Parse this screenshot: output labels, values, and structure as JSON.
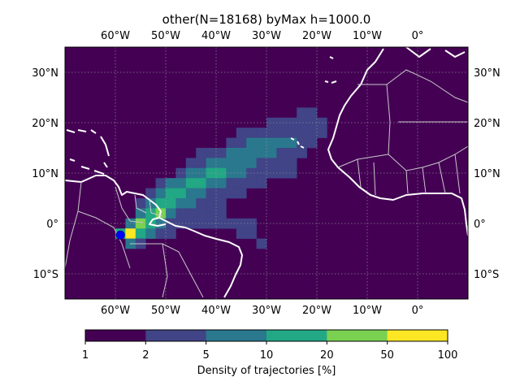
{
  "title": "other(N=18168) byMax h=1000.0",
  "map": {
    "lon_range": [
      -70,
      10
    ],
    "lat_range": [
      -15,
      35
    ],
    "lon_ticks": [
      {
        "value": -60,
        "label": "60°W"
      },
      {
        "value": -50,
        "label": "50°W"
      },
      {
        "value": -40,
        "label": "40°W"
      },
      {
        "value": -30,
        "label": "30°W"
      },
      {
        "value": -20,
        "label": "20°W"
      },
      {
        "value": -10,
        "label": "10°W"
      },
      {
        "value": 0,
        "label": "0°"
      }
    ],
    "lat_ticks": [
      {
        "value": 30,
        "label": "30°N"
      },
      {
        "value": 20,
        "label": "20°N"
      },
      {
        "value": 10,
        "label": "10°N"
      },
      {
        "value": 0,
        "label": "0°"
      },
      {
        "value": -10,
        "label": "10°S"
      }
    ],
    "background_color": "#440154",
    "gridlines": true,
    "source_marker": {
      "lon": -59.0,
      "lat": -2.3,
      "color": "#0000ff"
    }
  },
  "colorbar": {
    "label": "Density of trajectories [%]",
    "tick_labels": [
      "1",
      "2",
      "5",
      "10",
      "20",
      "50",
      "100"
    ],
    "colors": [
      "#440154",
      "#414487",
      "#2a788e",
      "#22a884",
      "#7ad151",
      "#fde725"
    ]
  },
  "chart_data": {
    "type": "heatmap",
    "title": "other(N=18168) byMax h=1000.0",
    "cell_size_deg": 2,
    "levels": [
      "1-2",
      "2-5",
      "5-10",
      "10-20",
      "20-50",
      "50-100"
    ],
    "cells": [
      {
        "lon": -24,
        "lat": 22,
        "level": 2
      },
      {
        "lon": -22,
        "lat": 22,
        "level": 2
      },
      {
        "lon": -30,
        "lat": 20,
        "level": 2
      },
      {
        "lon": -28,
        "lat": 20,
        "level": 2
      },
      {
        "lon": -26,
        "lat": 20,
        "level": 2
      },
      {
        "lon": -24,
        "lat": 20,
        "level": 2
      },
      {
        "lon": -22,
        "lat": 20,
        "level": 2
      },
      {
        "lon": -20,
        "lat": 20,
        "level": 2
      },
      {
        "lon": -36,
        "lat": 18,
        "level": 2
      },
      {
        "lon": -34,
        "lat": 18,
        "level": 2
      },
      {
        "lon": -32,
        "lat": 18,
        "level": 2
      },
      {
        "lon": -30,
        "lat": 18,
        "level": 2
      },
      {
        "lon": -28,
        "lat": 18,
        "level": 2
      },
      {
        "lon": -26,
        "lat": 18,
        "level": 2
      },
      {
        "lon": -24,
        "lat": 18,
        "level": 2
      },
      {
        "lon": -22,
        "lat": 18,
        "level": 2
      },
      {
        "lon": -20,
        "lat": 18,
        "level": 2
      },
      {
        "lon": -38,
        "lat": 16,
        "level": 2
      },
      {
        "lon": -36,
        "lat": 16,
        "level": 2
      },
      {
        "lon": -34,
        "lat": 16,
        "level": 3
      },
      {
        "lon": -32,
        "lat": 16,
        "level": 3
      },
      {
        "lon": -30,
        "lat": 16,
        "level": 3
      },
      {
        "lon": -28,
        "lat": 16,
        "level": 3
      },
      {
        "lon": -26,
        "lat": 16,
        "level": 3
      },
      {
        "lon": -24,
        "lat": 16,
        "level": 2
      },
      {
        "lon": -22,
        "lat": 16,
        "level": 2
      },
      {
        "lon": -44,
        "lat": 14,
        "level": 2
      },
      {
        "lon": -42,
        "lat": 14,
        "level": 2
      },
      {
        "lon": -40,
        "lat": 14,
        "level": 2
      },
      {
        "lon": -38,
        "lat": 14,
        "level": 3
      },
      {
        "lon": -36,
        "lat": 14,
        "level": 3
      },
      {
        "lon": -34,
        "lat": 14,
        "level": 3
      },
      {
        "lon": -32,
        "lat": 14,
        "level": 3
      },
      {
        "lon": -30,
        "lat": 14,
        "level": 3
      },
      {
        "lon": -28,
        "lat": 14,
        "level": 2
      },
      {
        "lon": -26,
        "lat": 14,
        "level": 2
      },
      {
        "lon": -24,
        "lat": 14,
        "level": 2
      },
      {
        "lon": -46,
        "lat": 12,
        "level": 2
      },
      {
        "lon": -44,
        "lat": 12,
        "level": 2
      },
      {
        "lon": -42,
        "lat": 12,
        "level": 3
      },
      {
        "lon": -40,
        "lat": 12,
        "level": 3
      },
      {
        "lon": -38,
        "lat": 12,
        "level": 3
      },
      {
        "lon": -36,
        "lat": 12,
        "level": 3
      },
      {
        "lon": -34,
        "lat": 12,
        "level": 3
      },
      {
        "lon": -32,
        "lat": 12,
        "level": 2
      },
      {
        "lon": -30,
        "lat": 12,
        "level": 2
      },
      {
        "lon": -28,
        "lat": 12,
        "level": 2
      },
      {
        "lon": -26,
        "lat": 12,
        "level": 2
      },
      {
        "lon": -48,
        "lat": 10,
        "level": 2
      },
      {
        "lon": -46,
        "lat": 10,
        "level": 3
      },
      {
        "lon": -44,
        "lat": 10,
        "level": 3
      },
      {
        "lon": -42,
        "lat": 10,
        "level": 4
      },
      {
        "lon": -40,
        "lat": 10,
        "level": 4
      },
      {
        "lon": -38,
        "lat": 10,
        "level": 3
      },
      {
        "lon": -36,
        "lat": 10,
        "level": 3
      },
      {
        "lon": -34,
        "lat": 10,
        "level": 2
      },
      {
        "lon": -32,
        "lat": 10,
        "level": 2
      },
      {
        "lon": -30,
        "lat": 10,
        "level": 2
      },
      {
        "lon": -28,
        "lat": 10,
        "level": 2
      },
      {
        "lon": -26,
        "lat": 10,
        "level": 2
      },
      {
        "lon": -52,
        "lat": 8,
        "level": 2
      },
      {
        "lon": -50,
        "lat": 8,
        "level": 3
      },
      {
        "lon": -48,
        "lat": 8,
        "level": 3
      },
      {
        "lon": -46,
        "lat": 8,
        "level": 4
      },
      {
        "lon": -44,
        "lat": 8,
        "level": 4
      },
      {
        "lon": -42,
        "lat": 8,
        "level": 3
      },
      {
        "lon": -40,
        "lat": 8,
        "level": 3
      },
      {
        "lon": -38,
        "lat": 8,
        "level": 2
      },
      {
        "lon": -36,
        "lat": 8,
        "level": 2
      },
      {
        "lon": -34,
        "lat": 8,
        "level": 2
      },
      {
        "lon": -32,
        "lat": 8,
        "level": 2
      },
      {
        "lon": -54,
        "lat": 6,
        "level": 2
      },
      {
        "lon": -52,
        "lat": 6,
        "level": 3
      },
      {
        "lon": -50,
        "lat": 6,
        "level": 4
      },
      {
        "lon": -48,
        "lat": 6,
        "level": 4
      },
      {
        "lon": -46,
        "lat": 6,
        "level": 3
      },
      {
        "lon": -44,
        "lat": 6,
        "level": 3
      },
      {
        "lon": -42,
        "lat": 6,
        "level": 2
      },
      {
        "lon": -40,
        "lat": 6,
        "level": 2
      },
      {
        "lon": -38,
        "lat": 6,
        "level": 2
      },
      {
        "lon": -36,
        "lat": 6,
        "level": 2
      },
      {
        "lon": -56,
        "lat": 4,
        "level": 2
      },
      {
        "lon": -54,
        "lat": 4,
        "level": 3
      },
      {
        "lon": -52,
        "lat": 4,
        "level": 4
      },
      {
        "lon": -50,
        "lat": 4,
        "level": 4
      },
      {
        "lon": -48,
        "lat": 4,
        "level": 3
      },
      {
        "lon": -46,
        "lat": 4,
        "level": 3
      },
      {
        "lon": -44,
        "lat": 4,
        "level": 2
      },
      {
        "lon": -42,
        "lat": 4,
        "level": 2
      },
      {
        "lon": -40,
        "lat": 4,
        "level": 2
      },
      {
        "lon": -56,
        "lat": 2,
        "level": 3
      },
      {
        "lon": -54,
        "lat": 2,
        "level": 4
      },
      {
        "lon": -52,
        "lat": 2,
        "level": 5
      },
      {
        "lon": -50,
        "lat": 2,
        "level": 3
      },
      {
        "lon": -48,
        "lat": 2,
        "level": 2
      },
      {
        "lon": -46,
        "lat": 2,
        "level": 2
      },
      {
        "lon": -44,
        "lat": 2,
        "level": 2
      },
      {
        "lon": -42,
        "lat": 2,
        "level": 2
      },
      {
        "lon": -40,
        "lat": 2,
        "level": 2
      },
      {
        "lon": -58,
        "lat": 0,
        "level": 3
      },
      {
        "lon": -56,
        "lat": 0,
        "level": 5
      },
      {
        "lon": -54,
        "lat": 0,
        "level": 4
      },
      {
        "lon": -52,
        "lat": 0,
        "level": 3
      },
      {
        "lon": -50,
        "lat": 0,
        "level": 2
      },
      {
        "lon": -48,
        "lat": 0,
        "level": 2
      },
      {
        "lon": -46,
        "lat": 0,
        "level": 2
      },
      {
        "lon": -44,
        "lat": 0,
        "level": 2
      },
      {
        "lon": -42,
        "lat": 0,
        "level": 2
      },
      {
        "lon": -40,
        "lat": 0,
        "level": 2
      },
      {
        "lon": -38,
        "lat": 0,
        "level": 2
      },
      {
        "lon": -36,
        "lat": 0,
        "level": 2
      },
      {
        "lon": -34,
        "lat": 0,
        "level": 2
      },
      {
        "lon": -60,
        "lat": -2,
        "level": 4
      },
      {
        "lon": -58,
        "lat": -2,
        "level": 6
      },
      {
        "lon": -56,
        "lat": -2,
        "level": 4
      },
      {
        "lon": -54,
        "lat": -2,
        "level": 3
      },
      {
        "lon": -52,
        "lat": -2,
        "level": 2
      },
      {
        "lon": -50,
        "lat": -2,
        "level": 2
      },
      {
        "lon": -36,
        "lat": -2,
        "level": 2
      },
      {
        "lon": -34,
        "lat": -2,
        "level": 2
      },
      {
        "lon": -58,
        "lat": -4,
        "level": 3
      },
      {
        "lon": -56,
        "lat": -4,
        "level": 2
      },
      {
        "lon": -32,
        "lat": -4,
        "level": 2
      }
    ]
  }
}
